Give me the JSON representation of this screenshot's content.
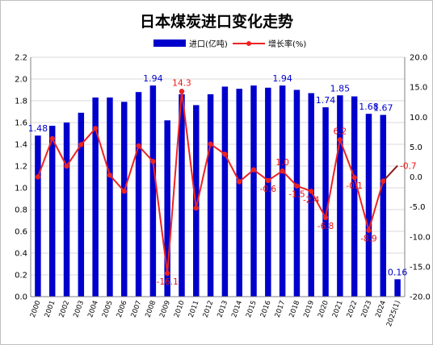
{
  "chart_data": {
    "type": "bar",
    "title": "日本煤炭进口变化走势",
    "categories": [
      "2000",
      "2001",
      "2002",
      "2003",
      "2004",
      "2005",
      "2006",
      "2007",
      "2008",
      "2009",
      "2010",
      "2011",
      "2012",
      "2013",
      "2014",
      "2015",
      "2016",
      "2017",
      "2018",
      "2019",
      "2020",
      "2021",
      "2022",
      "2023",
      "2024",
      "2025(1)"
    ],
    "series": [
      {
        "name": "进口(亿吨)",
        "kind": "bar",
        "axis": "left",
        "color": "#0000cc",
        "values": [
          1.48,
          1.57,
          1.6,
          1.69,
          1.83,
          1.83,
          1.79,
          1.88,
          1.94,
          1.62,
          1.86,
          1.76,
          1.86,
          1.93,
          1.91,
          1.94,
          1.92,
          1.94,
          1.9,
          1.87,
          1.74,
          1.85,
          1.84,
          1.68,
          1.67,
          0.16
        ]
      },
      {
        "name": "增长率(%)",
        "kind": "line",
        "axis": "right",
        "color": "#ee2222",
        "values": [
          0.0,
          6.4,
          1.8,
          5.4,
          8.1,
          0.3,
          -2.4,
          5.2,
          2.6,
          -16.1,
          14.3,
          -5.2,
          5.5,
          3.8,
          -0.8,
          1.2,
          -0.6,
          1.0,
          -1.5,
          -2.4,
          -6.8,
          6.2,
          -0.1,
          -8.9,
          -0.7,
          null
        ]
      }
    ],
    "trend_line_color": "#8b1a1a",
    "trend_end_value": 1.9,
    "bar_labels": [
      {
        "index": 0,
        "text": "1.48"
      },
      {
        "index": 8,
        "text": "1.94"
      },
      {
        "index": 17,
        "text": "1.94"
      },
      {
        "index": 20,
        "text": "1.74"
      },
      {
        "index": 21,
        "text": "1.85"
      },
      {
        "index": 23,
        "text": "1.68"
      },
      {
        "index": 24,
        "text": "1.67"
      },
      {
        "index": 25,
        "text": "0.16"
      }
    ],
    "line_labels": [
      {
        "index": 9,
        "text": "-16.1"
      },
      {
        "index": 10,
        "text": "14.3"
      },
      {
        "index": 16,
        "text": "-0.6"
      },
      {
        "index": 17,
        "text": "1.0"
      },
      {
        "index": 18,
        "text": "-1.5"
      },
      {
        "index": 19,
        "text": "-2.4"
      },
      {
        "index": 20,
        "text": "-6.8"
      },
      {
        "index": 21,
        "text": "6.2"
      },
      {
        "index": 22,
        "text": "-0.1"
      },
      {
        "index": 23,
        "text": "-8.9"
      },
      {
        "index": 24,
        "text": "-0.7"
      }
    ],
    "ylim_left": [
      0,
      2.2
    ],
    "yticks_left": [
      "0.0",
      "0.2",
      "0.4",
      "0.6",
      "0.8",
      "1.0",
      "1.2",
      "1.4",
      "1.6",
      "1.8",
      "2.0",
      "2.2"
    ],
    "ylim_right": [
      -20,
      20
    ],
    "yticks_right": [
      "-20.0",
      "-15.0",
      "-10.0",
      "-5.0",
      "0.0",
      "5.0",
      "10.0",
      "15.0",
      "20.0"
    ],
    "grid": true,
    "legend_position": "top-center"
  }
}
